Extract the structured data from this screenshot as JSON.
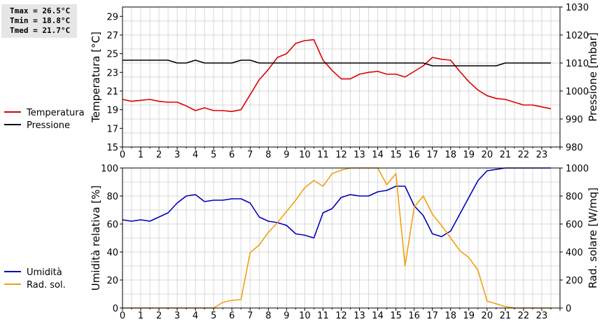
{
  "stats": {
    "tmax": "Tmax = 26.5°C",
    "tmin": "Tmin = 18.8°C",
    "tmed": "Tmed = 21.7°C"
  },
  "chart_data": [
    {
      "type": "line",
      "title": "",
      "xlabel": "",
      "x_ticks": [
        "0",
        "1",
        "2",
        "3",
        "4",
        "5",
        "6",
        "7",
        "8",
        "9",
        "10",
        "11",
        "12",
        "13",
        "14",
        "15",
        "16",
        "17",
        "18",
        "19",
        "20",
        "21",
        "22",
        "23"
      ],
      "xlim": [
        0,
        24
      ],
      "ylabel": "Temperatura [°C]",
      "ylim": [
        15,
        30
      ],
      "y_ticks": [
        "15",
        "17",
        "19",
        "21",
        "23",
        "25",
        "27",
        "29"
      ],
      "y2label": "Pressione [mbar]",
      "y2lim": [
        980,
        1030
      ],
      "y2_ticks": [
        "980",
        "990",
        "1000",
        "1010",
        "1020",
        "1030"
      ],
      "grid": true,
      "legend_placement": "left",
      "series": [
        {
          "name": "Temperatura",
          "axis": "left",
          "color": "#dd0000",
          "x": [
            0,
            0.5,
            1,
            1.5,
            2,
            2.5,
            3,
            3.5,
            4,
            4.5,
            5,
            5.5,
            6,
            6.5,
            7,
            7.5,
            8,
            8.5,
            9,
            9.5,
            10,
            10.5,
            11,
            11.5,
            12,
            12.5,
            13,
            13.5,
            14,
            14.5,
            15,
            15.5,
            16,
            16.5,
            17,
            17.5,
            18,
            18.5,
            19,
            19.5,
            20,
            20.5,
            21,
            21.5,
            22,
            22.5,
            23,
            23.5
          ],
          "values": [
            20.1,
            19.9,
            20.0,
            20.1,
            19.9,
            19.8,
            19.8,
            19.4,
            18.9,
            19.2,
            18.9,
            18.9,
            18.8,
            19.0,
            20.6,
            22.2,
            23.3,
            24.6,
            25.0,
            26.1,
            26.4,
            26.5,
            24.3,
            23.2,
            22.3,
            22.3,
            22.8,
            23.0,
            23.1,
            22.8,
            22.8,
            22.5,
            23.1,
            23.7,
            24.6,
            24.4,
            24.3,
            23.1,
            22.0,
            21.1,
            20.5,
            20.2,
            20.1,
            19.8,
            19.5,
            19.5,
            19.3,
            19.1
          ]
        },
        {
          "name": "Pressione",
          "axis": "right",
          "color": "#000000",
          "x": [
            0,
            0.5,
            1,
            1.5,
            2,
            2.5,
            3,
            3.5,
            4,
            4.5,
            5,
            5.5,
            6,
            6.5,
            7,
            7.5,
            8,
            8.5,
            9,
            9.5,
            10,
            10.5,
            11,
            11.5,
            12,
            12.5,
            13,
            13.5,
            14,
            14.5,
            15,
            15.5,
            16,
            16.5,
            17,
            17.5,
            18,
            18.5,
            19,
            19.5,
            20,
            20.5,
            21,
            21.5,
            22,
            22.5,
            23,
            23.5
          ],
          "values": [
            1011,
            1011,
            1011,
            1011,
            1011,
            1011,
            1010,
            1010,
            1011,
            1010,
            1010,
            1010,
            1010,
            1011,
            1011,
            1010,
            1010,
            1010,
            1010,
            1010,
            1010,
            1010,
            1010,
            1010,
            1010,
            1010,
            1010,
            1010,
            1010,
            1010,
            1010,
            1010,
            1010,
            1010,
            1009,
            1009,
            1009,
            1009,
            1009,
            1009,
            1009,
            1009,
            1010,
            1010,
            1010,
            1010,
            1010,
            1010
          ]
        }
      ]
    },
    {
      "type": "line",
      "title": "",
      "xlabel": "",
      "x_ticks": [
        "0",
        "1",
        "2",
        "3",
        "4",
        "5",
        "6",
        "7",
        "8",
        "9",
        "10",
        "11",
        "12",
        "13",
        "14",
        "15",
        "16",
        "17",
        "18",
        "19",
        "20",
        "21",
        "22",
        "23"
      ],
      "xlim": [
        0,
        24
      ],
      "ylabel": "Umidità relativa [%]",
      "ylim": [
        0,
        100
      ],
      "y_ticks": [
        "0",
        "20",
        "40",
        "60",
        "80",
        "100"
      ],
      "y2label": "Rad. solare [W/mq]",
      "y2lim": [
        0,
        1000
      ],
      "y2_ticks": [
        "0",
        "200",
        "400",
        "600",
        "800",
        "1000"
      ],
      "grid": true,
      "legend_placement": "left",
      "series": [
        {
          "name": "Umidità",
          "axis": "left",
          "color": "#0000bb",
          "x": [
            0,
            0.5,
            1,
            1.5,
            2,
            2.5,
            3,
            3.5,
            4,
            4.5,
            5,
            5.5,
            6,
            6.5,
            7,
            7.5,
            8,
            8.5,
            9,
            9.5,
            10,
            10.5,
            11,
            11.5,
            12,
            12.5,
            13,
            13.5,
            14,
            14.5,
            15,
            15.5,
            16,
            16.5,
            17,
            17.5,
            18,
            18.5,
            19,
            19.5,
            20,
            20.5,
            21,
            21.5,
            22,
            22.5,
            23,
            23.5
          ],
          "values": [
            63,
            62,
            63,
            62,
            65,
            68,
            75,
            80,
            81,
            76,
            77,
            77,
            78,
            78,
            75,
            65,
            62,
            61,
            59,
            53,
            52,
            50,
            68,
            71,
            79,
            81,
            80,
            80,
            83,
            84,
            87,
            87,
            73,
            66,
            53,
            51,
            55,
            67,
            79,
            91,
            98,
            99,
            100,
            100,
            100,
            100,
            100,
            100
          ]
        },
        {
          "name": "Rad. sol.",
          "axis": "right",
          "color": "#f0a010",
          "x": [
            0,
            0.5,
            1,
            1.5,
            2,
            2.5,
            3,
            3.5,
            4,
            4.5,
            5,
            5.5,
            6,
            6.5,
            7,
            7.5,
            8,
            8.5,
            9,
            9.5,
            10,
            10.5,
            11,
            11.5,
            12,
            12.5,
            13,
            13.5,
            14,
            14.5,
            15,
            15.5,
            16,
            16.5,
            17,
            17.5,
            18,
            18.5,
            19,
            19.5,
            20,
            20.5,
            21,
            21.5,
            22,
            22.5,
            23,
            23.5
          ],
          "values": [
            0,
            0,
            0,
            0,
            0,
            0,
            0,
            0,
            0,
            0,
            0,
            40,
            55,
            60,
            395,
            450,
            540,
            610,
            690,
            770,
            860,
            910,
            870,
            960,
            985,
            1000,
            1000,
            1000,
            1000,
            880,
            960,
            300,
            720,
            800,
            670,
            590,
            500,
            410,
            360,
            270,
            50,
            30,
            10,
            0,
            0,
            0,
            0,
            0
          ]
        }
      ]
    }
  ]
}
